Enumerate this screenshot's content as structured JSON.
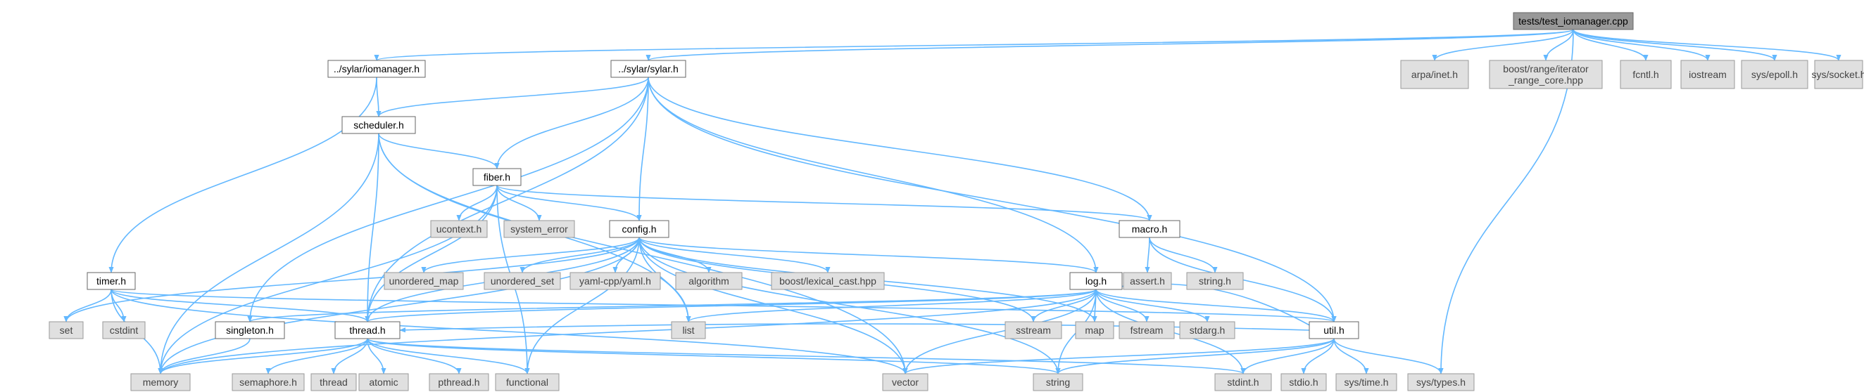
{
  "root": "tests/test_iomanager.cpp",
  "nodes": [
    {
      "id": "test_iomanager",
      "label": "tests/test_iomanager.cpp",
      "kind": "root"
    },
    {
      "id": "iomanager",
      "label": "../sylar/iomanager.h",
      "kind": "local"
    },
    {
      "id": "sylar",
      "label": "../sylar/sylar.h",
      "kind": "local"
    },
    {
      "id": "arpa_inet",
      "label": "arpa/inet.h",
      "kind": "system"
    },
    {
      "id": "boost_range",
      "label": "boost/range/iterator\n_range_core.hpp",
      "kind": "system"
    },
    {
      "id": "fcntl",
      "label": "fcntl.h",
      "kind": "system"
    },
    {
      "id": "iostream",
      "label": "iostream",
      "kind": "system"
    },
    {
      "id": "sys_epoll",
      "label": "sys/epoll.h",
      "kind": "system"
    },
    {
      "id": "sys_socket",
      "label": "sys/socket.h",
      "kind": "system"
    },
    {
      "id": "scheduler",
      "label": "scheduler.h",
      "kind": "local"
    },
    {
      "id": "fiber",
      "label": "fiber.h",
      "kind": "local"
    },
    {
      "id": "ucontext",
      "label": "ucontext.h",
      "kind": "system"
    },
    {
      "id": "system_error",
      "label": "system_error",
      "kind": "system"
    },
    {
      "id": "config",
      "label": "config.h",
      "kind": "local"
    },
    {
      "id": "macro",
      "label": "macro.h",
      "kind": "local"
    },
    {
      "id": "timer",
      "label": "timer.h",
      "kind": "local"
    },
    {
      "id": "unordered_map",
      "label": "unordered_map",
      "kind": "system"
    },
    {
      "id": "unordered_set",
      "label": "unordered_set",
      "kind": "system"
    },
    {
      "id": "yaml",
      "label": "yaml-cpp/yaml.h",
      "kind": "system"
    },
    {
      "id": "algorithm",
      "label": "algorithm",
      "kind": "system"
    },
    {
      "id": "lexical_cast",
      "label": "boost/lexical_cast.hpp",
      "kind": "system"
    },
    {
      "id": "log",
      "label": "log.h",
      "kind": "local"
    },
    {
      "id": "assert",
      "label": "assert.h",
      "kind": "system"
    },
    {
      "id": "string_h",
      "label": "string.h",
      "kind": "system"
    },
    {
      "id": "set",
      "label": "set",
      "kind": "system"
    },
    {
      "id": "cstdint",
      "label": "cstdint",
      "kind": "system"
    },
    {
      "id": "singleton",
      "label": "singleton.h",
      "kind": "local"
    },
    {
      "id": "thread_h",
      "label": "thread.h",
      "kind": "local"
    },
    {
      "id": "list",
      "label": "list",
      "kind": "system"
    },
    {
      "id": "sstream",
      "label": "sstream",
      "kind": "system"
    },
    {
      "id": "map",
      "label": "map",
      "kind": "system"
    },
    {
      "id": "fstream",
      "label": "fstream",
      "kind": "system"
    },
    {
      "id": "stdarg",
      "label": "stdarg.h",
      "kind": "system"
    },
    {
      "id": "util",
      "label": "util.h",
      "kind": "local"
    },
    {
      "id": "memory",
      "label": "memory",
      "kind": "system"
    },
    {
      "id": "semaphore",
      "label": "semaphore.h",
      "kind": "system"
    },
    {
      "id": "thread",
      "label": "thread",
      "kind": "system"
    },
    {
      "id": "atomic",
      "label": "atomic",
      "kind": "system"
    },
    {
      "id": "pthread",
      "label": "pthread.h",
      "kind": "system"
    },
    {
      "id": "functional",
      "label": "functional",
      "kind": "system"
    },
    {
      "id": "vector",
      "label": "vector",
      "kind": "system"
    },
    {
      "id": "string",
      "label": "string",
      "kind": "system"
    },
    {
      "id": "stdint",
      "label": "stdint.h",
      "kind": "system"
    },
    {
      "id": "stdio",
      "label": "stdio.h",
      "kind": "system"
    },
    {
      "id": "sys_time",
      "label": "sys/time.h",
      "kind": "system"
    },
    {
      "id": "sys_types",
      "label": "sys/types.h",
      "kind": "system"
    }
  ],
  "edges": [
    [
      "test_iomanager",
      "iomanager"
    ],
    [
      "test_iomanager",
      "sylar"
    ],
    [
      "test_iomanager",
      "arpa_inet"
    ],
    [
      "test_iomanager",
      "boost_range"
    ],
    [
      "test_iomanager",
      "fcntl"
    ],
    [
      "test_iomanager",
      "iostream"
    ],
    [
      "test_iomanager",
      "sys_epoll"
    ],
    [
      "test_iomanager",
      "sys_socket"
    ],
    [
      "test_iomanager",
      "sys_types"
    ],
    [
      "iomanager",
      "scheduler"
    ],
    [
      "iomanager",
      "timer"
    ],
    [
      "sylar",
      "scheduler"
    ],
    [
      "sylar",
      "fiber"
    ],
    [
      "sylar",
      "config"
    ],
    [
      "sylar",
      "macro"
    ],
    [
      "sylar",
      "log"
    ],
    [
      "sylar",
      "util"
    ],
    [
      "sylar",
      "singleton"
    ],
    [
      "sylar",
      "thread_h"
    ],
    [
      "scheduler",
      "fiber"
    ],
    [
      "scheduler",
      "thread_h"
    ],
    [
      "scheduler",
      "memory"
    ],
    [
      "scheduler",
      "list"
    ],
    [
      "scheduler",
      "vector"
    ],
    [
      "fiber",
      "ucontext"
    ],
    [
      "fiber",
      "system_error"
    ],
    [
      "fiber",
      "config"
    ],
    [
      "fiber",
      "macro"
    ],
    [
      "fiber",
      "thread_h"
    ],
    [
      "fiber",
      "memory"
    ],
    [
      "fiber",
      "functional"
    ],
    [
      "config",
      "unordered_map"
    ],
    [
      "config",
      "unordered_set"
    ],
    [
      "config",
      "yaml"
    ],
    [
      "config",
      "algorithm"
    ],
    [
      "config",
      "lexical_cast"
    ],
    [
      "config",
      "log"
    ],
    [
      "config",
      "thread_h"
    ],
    [
      "config",
      "set"
    ],
    [
      "config",
      "memory"
    ],
    [
      "config",
      "list"
    ],
    [
      "config",
      "sstream"
    ],
    [
      "config",
      "map"
    ],
    [
      "config",
      "vector"
    ],
    [
      "config",
      "string"
    ],
    [
      "config",
      "functional"
    ],
    [
      "macro",
      "assert"
    ],
    [
      "macro",
      "string_h"
    ],
    [
      "macro",
      "util"
    ],
    [
      "timer",
      "set"
    ],
    [
      "timer",
      "cstdint"
    ],
    [
      "timer",
      "memory"
    ],
    [
      "timer",
      "thread_h"
    ],
    [
      "timer",
      "util"
    ],
    [
      "timer",
      "vector"
    ],
    [
      "log",
      "singleton"
    ],
    [
      "log",
      "thread_h"
    ],
    [
      "log",
      "list"
    ],
    [
      "log",
      "sstream"
    ],
    [
      "log",
      "map"
    ],
    [
      "log",
      "fstream"
    ],
    [
      "log",
      "stdarg"
    ],
    [
      "log",
      "util"
    ],
    [
      "log",
      "memory"
    ],
    [
      "log",
      "vector"
    ],
    [
      "log",
      "string"
    ],
    [
      "log",
      "stdint"
    ],
    [
      "util",
      "log"
    ],
    [
      "util",
      "vector"
    ],
    [
      "util",
      "string"
    ],
    [
      "util",
      "stdint"
    ],
    [
      "util",
      "stdio"
    ],
    [
      "util",
      "sys_time"
    ],
    [
      "util",
      "sys_types"
    ],
    [
      "util",
      "thread_h"
    ],
    [
      "singleton",
      "memory"
    ],
    [
      "thread_h",
      "memory"
    ],
    [
      "thread_h",
      "semaphore"
    ],
    [
      "thread_h",
      "thread"
    ],
    [
      "thread_h",
      "atomic"
    ],
    [
      "thread_h",
      "pthread"
    ],
    [
      "thread_h",
      "functional"
    ],
    [
      "thread_h",
      "string"
    ],
    [
      "thread_h",
      "stdint"
    ]
  ]
}
